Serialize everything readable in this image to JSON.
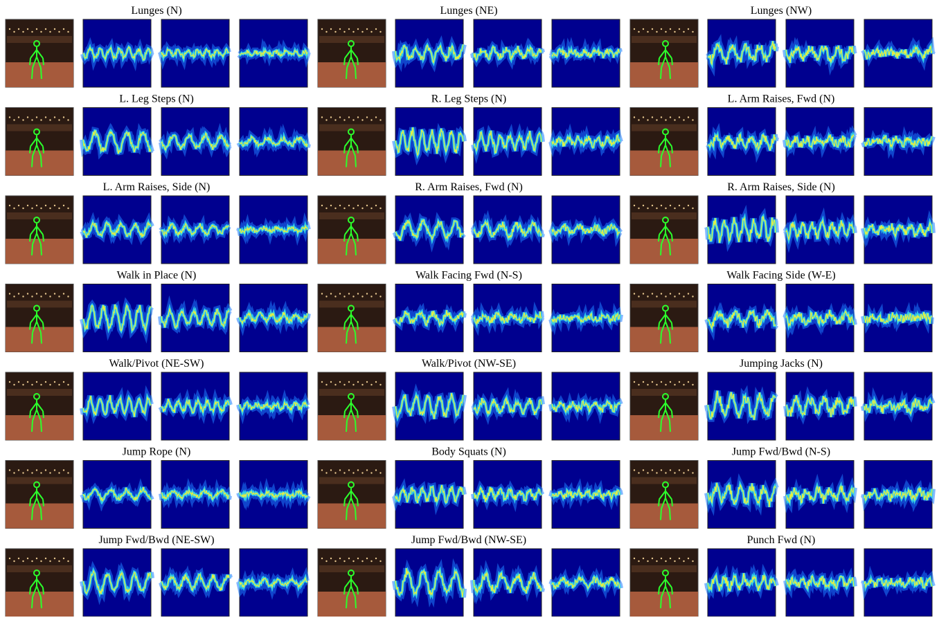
{
  "panels": [
    {
      "title": "Lunges (N)"
    },
    {
      "title": "Lunges (NE)"
    },
    {
      "title": "Lunges (NW)"
    },
    {
      "title": "L. Leg Steps (N)"
    },
    {
      "title": "R. Leg Steps (N)"
    },
    {
      "title": "L. Arm Raises, Fwd (N)"
    },
    {
      "title": "L. Arm Raises, Side (N)"
    },
    {
      "title": "R. Arm Raises, Fwd (N)"
    },
    {
      "title": "R. Arm Raises, Side (N)"
    },
    {
      "title": "Walk in Place (N)"
    },
    {
      "title": "Walk Facing Fwd (N-S)"
    },
    {
      "title": "Walk Facing Side (W-E)"
    },
    {
      "title": "Walk/Pivot (NE-SW)"
    },
    {
      "title": "Walk/Pivot (NW-SE)"
    },
    {
      "title": "Jumping Jacks (N)"
    },
    {
      "title": "Jump Rope (N)"
    },
    {
      "title": "Body Squats (N)"
    },
    {
      "title": "Jump Fwd/Bwd (N-S)"
    },
    {
      "title": "Jump Fwd/Bwd (NE-SW)"
    },
    {
      "title": "Jump Fwd/Bwd (NW-SE)"
    },
    {
      "title": "Punch Fwd (N)"
    }
  ]
}
